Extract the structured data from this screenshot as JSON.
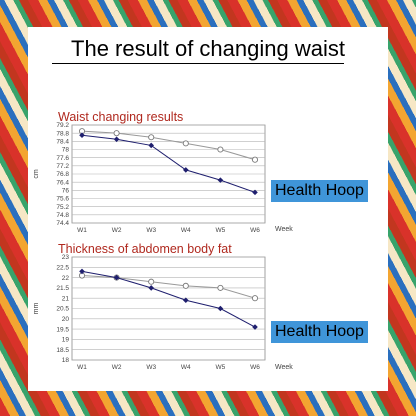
{
  "page_title": "The result of changing waist",
  "chart_data": [
    {
      "type": "line",
      "title": "Waist changing results",
      "xlabel": "Week",
      "ylabel": "cm",
      "categories": [
        "W1",
        "W2",
        "W3",
        "W4",
        "W5",
        "W6"
      ],
      "ylim": [
        74.4,
        79.2
      ],
      "yticks": [
        "79.2",
        "78.8",
        "78.4",
        "78",
        "77.6",
        "77.2",
        "76.8",
        "76.4",
        "76",
        "75.6",
        "75.2",
        "74.8",
        "74.4"
      ],
      "grid": true,
      "series": [
        {
          "marker": "open-circle",
          "color": "#999999",
          "values": [
            78.9,
            78.8,
            78.6,
            78.3,
            78.0,
            77.5
          ]
        },
        {
          "name": "Health Hoop",
          "marker": "filled-diamond",
          "color": "#1f1f6e",
          "values": [
            78.7,
            78.5,
            78.2,
            77.0,
            76.5,
            75.9
          ]
        }
      ]
    },
    {
      "type": "line",
      "title": "Thickness of abdomen body fat",
      "xlabel": "Week",
      "ylabel": "mm",
      "categories": [
        "W1",
        "W2",
        "W3",
        "W4",
        "W5",
        "W6"
      ],
      "ylim": [
        18,
        23
      ],
      "yticks": [
        "23",
        "22.5",
        "22",
        "21.5",
        "21",
        "20.5",
        "20",
        "19.5",
        "19",
        "18.5",
        "18"
      ],
      "grid": true,
      "series": [
        {
          "marker": "open-circle",
          "color": "#999999",
          "values": [
            22.1,
            22.0,
            21.8,
            21.6,
            21.5,
            21.0
          ]
        },
        {
          "name": "Health Hoop",
          "marker": "filled-diamond",
          "color": "#1f1f6e",
          "values": [
            22.3,
            22.0,
            21.5,
            20.9,
            20.5,
            19.6
          ]
        }
      ]
    }
  ]
}
